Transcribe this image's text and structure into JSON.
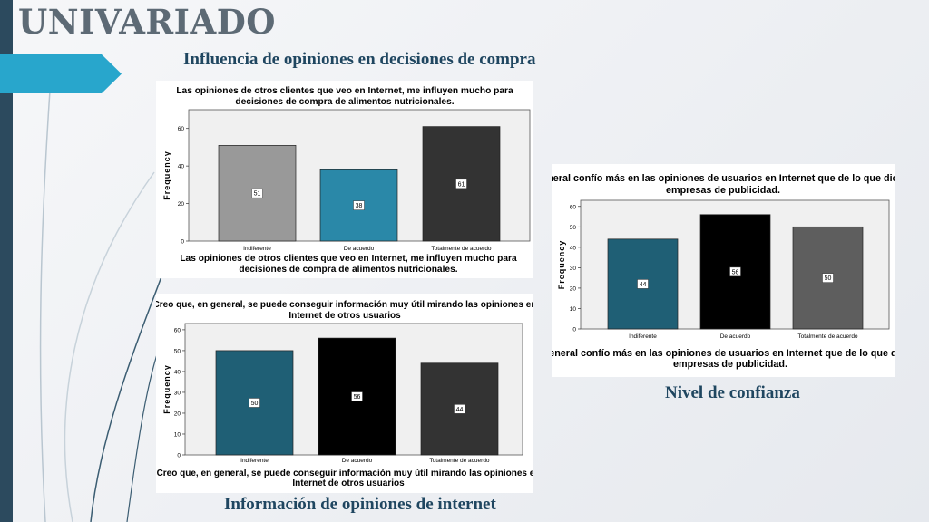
{
  "slide": {
    "title": "UNIVARIADO",
    "subtitle_top": "Influencia de opiniones en decisiones de compra",
    "subtitle_right": "Nivel de confianza",
    "subtitle_bottom": "Información de opiniones de internet",
    "colors": {
      "sidebar": "#2c4a5e",
      "accent": "#28a6cc",
      "heading": "#1f4660"
    }
  },
  "chart_data": [
    {
      "type": "bar",
      "title": "Las opiniones de otros clientes que veo en Internet, me influyen mucho para decisiones de compra de alimentos nutricionales.",
      "title_lines": [
        "Las opiniones de otros clientes que veo en Internet, me influyen mucho para",
        "decisiones de compra de alimentos nutricionales."
      ],
      "xlabel": "Las opiniones de otros clientes que veo en Internet, me influyen mucho para decisiones de compra de alimentos nutricionales.",
      "xlabel_lines": [
        "Las opiniones de otros clientes que veo en Internet, me influyen mucho para",
        "decisiones de compra de alimentos nutricionales."
      ],
      "ylabel": "Frequency",
      "ylim": [
        0,
        70
      ],
      "yticks": [
        0,
        20,
        40,
        60
      ],
      "categories": [
        "Indiferente",
        "De acuerdo",
        "Totalmente de acuerdo"
      ],
      "values": [
        51,
        38,
        61
      ],
      "data_labels": [
        "51",
        "38",
        "61"
      ],
      "colors": [
        "#999999",
        "#2a88a8",
        "#333333"
      ]
    },
    {
      "type": "bar",
      "title": "Creo que, en general, se puede conseguir información muy útil mirando las opiniones en Internet de otros usuarios",
      "title_lines": [
        "Creo que, en general, se puede conseguir información muy útil mirando las opiniones en",
        "Internet de otros usuarios"
      ],
      "xlabel": "Creo que, en general, se puede conseguir información muy útil mirando las opiniones en Internet de otros usuarios",
      "xlabel_lines": [
        "Creo que, en general, se puede conseguir información muy útil mirando las opiniones en",
        "Internet de otros usuarios"
      ],
      "ylabel": "Frequency",
      "ylim": [
        0,
        63
      ],
      "yticks": [
        0,
        10,
        20,
        30,
        40,
        50,
        60
      ],
      "categories": [
        "Indiferente",
        "De acuerdo",
        "Totalmente de acuerdo"
      ],
      "values": [
        50,
        56,
        44
      ],
      "data_labels": [
        "50",
        "56",
        "44"
      ],
      "colors": [
        "#1f5f75",
        "#000000",
        "#333333"
      ]
    },
    {
      "type": "bar",
      "title": "En general confío más en las opiniones de usuarios en Internet que de lo que dicen las empresas de publicidad.",
      "title_lines": [
        "En general confío más en las opiniones de usuarios en Internet que de lo que dicen las",
        "empresas de publicidad."
      ],
      "xlabel": "En general confío más en las opiniones de usuarios en Internet que de lo que dicen las empresas de publicidad.",
      "xlabel_lines": [
        "En general confío más en las opiniones de usuarios en Internet que de lo que dicen las",
        "empresas de publicidad."
      ],
      "ylabel": "Frequency",
      "ylim": [
        0,
        63
      ],
      "yticks": [
        0,
        10,
        20,
        30,
        40,
        50,
        60
      ],
      "categories": [
        "Indiferente",
        "De acuerdo",
        "Totalmente de acuerdo"
      ],
      "values": [
        44,
        56,
        50
      ],
      "data_labels": [
        "44",
        "56",
        "50"
      ],
      "colors": [
        "#1f5f75",
        "#000000",
        "#5e5e5e"
      ]
    }
  ]
}
